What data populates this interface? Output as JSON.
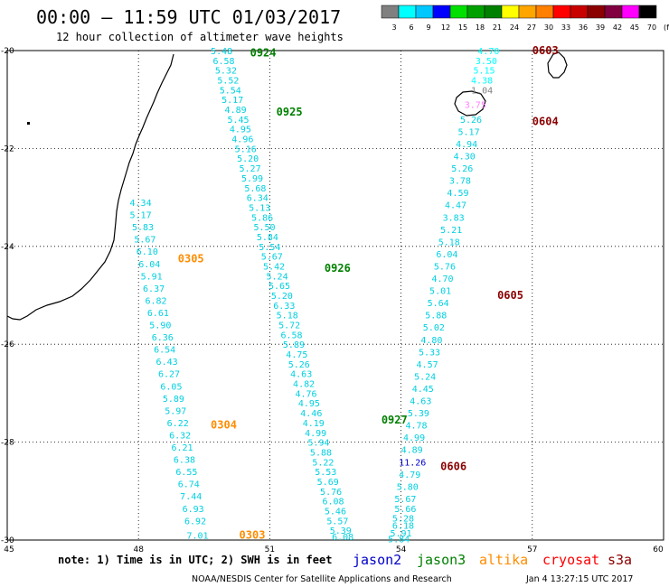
{
  "title": "00:00 – 11:59 UTC 01/03/2017",
  "subtitle": "12 hour collection of altimeter wave heights",
  "legend": {
    "labels": [
      "3",
      "6",
      "9",
      "12",
      "15",
      "18",
      "21",
      "24",
      "27",
      "30",
      "33",
      "36",
      "39",
      "42",
      "45",
      "70",
      "(ft)"
    ],
    "colors": [
      "#808080",
      "#00ffff",
      "#00c8ff",
      "#0000ff",
      "#00e000",
      "#00a000",
      "#008000",
      "#ffff00",
      "#ffa500",
      "#ff7f00",
      "#ff0000",
      "#c80000",
      "#8b0000",
      "#800040",
      "#ff00ff",
      "#000000"
    ]
  },
  "x_ticks": [
    "45",
    "48",
    "51",
    "54",
    "57",
    "60"
  ],
  "y_ticks": [
    "-20",
    "-22",
    "-24",
    "-26",
    "-28",
    "-30"
  ],
  "colors": {
    "jason2": "#0000cc",
    "jason3": "#008000",
    "altika": "#ff8c00",
    "cryosat": "#ff0000",
    "s3a": "#8b0000",
    "swh_main": "#00d0e0",
    "swh_cyan": "#00ffff",
    "swh_gray": "#808080",
    "swh_pink": "#ff80ff"
  },
  "tracks": [
    {
      "id": "jason3-desc",
      "time_labels": [
        {
          "text": "0924",
          "lat": -20.05,
          "lon": 50.55
        },
        {
          "text": "0925",
          "lat": -21.25,
          "lon": 51.15
        },
        {
          "text": "0926",
          "lat": -24.45,
          "lon": 52.25
        },
        {
          "text": "0927",
          "lat": -27.55,
          "lon": 53.55
        }
      ],
      "values": [
        {
          "v": "5.48",
          "lat": -20.0,
          "lon": 49.65
        },
        {
          "v": "6.58",
          "lat": -20.2,
          "lon": 49.7
        },
        {
          "v": "5.32",
          "lat": -20.4,
          "lon": 49.75
        },
        {
          "v": "5.52",
          "lat": -20.6,
          "lon": 49.8
        },
        {
          "v": "5.54",
          "lat": -20.8,
          "lon": 49.85
        },
        {
          "v": "5.17",
          "lat": -21.0,
          "lon": 49.9
        },
        {
          "v": "4.89",
          "lat": -21.2,
          "lon": 49.97
        },
        {
          "v": "5.45",
          "lat": -21.4,
          "lon": 50.03
        },
        {
          "v": "4.95",
          "lat": -21.6,
          "lon": 50.08
        },
        {
          "v": "4.96",
          "lat": -21.8,
          "lon": 50.13
        },
        {
          "v": "5.16",
          "lat": -22.0,
          "lon": 50.2
        },
        {
          "v": "5.20",
          "lat": -22.2,
          "lon": 50.25
        },
        {
          "v": "5.27",
          "lat": -22.4,
          "lon": 50.3
        },
        {
          "v": "5.99",
          "lat": -22.6,
          "lon": 50.35
        },
        {
          "v": "5.68",
          "lat": -22.8,
          "lon": 50.42
        },
        {
          "v": "6.34",
          "lat": -23.0,
          "lon": 50.47
        },
        {
          "v": "5.13",
          "lat": -23.2,
          "lon": 50.52
        },
        {
          "v": "5.86",
          "lat": -23.4,
          "lon": 50.58
        },
        {
          "v": "5.50",
          "lat": -23.6,
          "lon": 50.63
        },
        {
          "v": "5.84",
          "lat": -23.8,
          "lon": 50.7
        },
        {
          "v": "5.54",
          "lat": -24.0,
          "lon": 50.75
        },
        {
          "v": "5.67",
          "lat": -24.2,
          "lon": 50.8
        },
        {
          "v": "5.42",
          "lat": -24.4,
          "lon": 50.85
        },
        {
          "v": "5.24",
          "lat": -24.6,
          "lon": 50.92
        },
        {
          "v": "5.65",
          "lat": -24.8,
          "lon": 50.97
        },
        {
          "v": "5.20",
          "lat": -25.0,
          "lon": 51.03
        },
        {
          "v": "6.33",
          "lat": -25.2,
          "lon": 51.08
        },
        {
          "v": "5.18",
          "lat": -25.4,
          "lon": 51.15
        },
        {
          "v": "5.72",
          "lat": -25.6,
          "lon": 51.2
        },
        {
          "v": "6.58",
          "lat": -25.8,
          "lon": 51.25
        },
        {
          "v": "5.89",
          "lat": -26.0,
          "lon": 51.3
        },
        {
          "v": "4.75",
          "lat": -26.2,
          "lon": 51.37
        },
        {
          "v": "5.26",
          "lat": -26.4,
          "lon": 51.42
        },
        {
          "v": "4.63",
          "lat": -26.6,
          "lon": 51.47
        },
        {
          "v": "4.82",
          "lat": -26.8,
          "lon": 51.53
        },
        {
          "v": "4.76",
          "lat": -27.0,
          "lon": 51.58
        },
        {
          "v": "4.95",
          "lat": -27.2,
          "lon": 51.65
        },
        {
          "v": "4.46",
          "lat": -27.4,
          "lon": 51.7
        },
        {
          "v": "4.19",
          "lat": -27.6,
          "lon": 51.75
        },
        {
          "v": "4.99",
          "lat": -27.8,
          "lon": 51.8
        },
        {
          "v": "5.94",
          "lat": -28.0,
          "lon": 51.87
        },
        {
          "v": "5.88",
          "lat": -28.2,
          "lon": 51.92
        },
        {
          "v": "5.22",
          "lat": -28.4,
          "lon": 51.97
        },
        {
          "v": "5.53",
          "lat": -28.6,
          "lon": 52.03
        },
        {
          "v": "5.69",
          "lat": -28.8,
          "lon": 52.08
        },
        {
          "v": "5.76",
          "lat": -29.0,
          "lon": 52.15
        },
        {
          "v": "6.08",
          "lat": -29.2,
          "lon": 52.2
        },
        {
          "v": "5.46",
          "lat": -29.4,
          "lon": 52.25
        },
        {
          "v": "5.57",
          "lat": -29.6,
          "lon": 52.3
        },
        {
          "v": "5.39",
          "lat": -29.8,
          "lon": 52.37
        },
        {
          "v": "6.08",
          "lat": -29.93,
          "lon": 52.42
        }
      ]
    },
    {
      "id": "altika-desc",
      "time_labels": [
        {
          "text": "0305",
          "lat": -24.25,
          "lon": 48.9
        },
        {
          "text": "0304",
          "lat": -27.65,
          "lon": 49.65
        },
        {
          "text": "0303",
          "lat": -29.9,
          "lon": 50.3
        }
      ],
      "values": [
        {
          "v": "4.34",
          "lat": -23.1,
          "lon": 47.8
        },
        {
          "v": "5.17",
          "lat": -23.35,
          "lon": 47.8
        },
        {
          "v": "5.83",
          "lat": -23.6,
          "lon": 47.85
        },
        {
          "v": "5.67",
          "lat": -23.85,
          "lon": 47.9
        },
        {
          "v": "6.10",
          "lat": -24.1,
          "lon": 47.95
        },
        {
          "v": "6.04",
          "lat": -24.35,
          "lon": 48.0
        },
        {
          "v": "5.91",
          "lat": -24.6,
          "lon": 48.05
        },
        {
          "v": "6.37",
          "lat": -24.85,
          "lon": 48.1
        },
        {
          "v": "6.82",
          "lat": -25.1,
          "lon": 48.15
        },
        {
          "v": "6.61",
          "lat": -25.35,
          "lon": 48.2
        },
        {
          "v": "5.90",
          "lat": -25.6,
          "lon": 48.25
        },
        {
          "v": "6.36",
          "lat": -25.85,
          "lon": 48.3
        },
        {
          "v": "6.54",
          "lat": -26.1,
          "lon": 48.35
        },
        {
          "v": "6.43",
          "lat": -26.35,
          "lon": 48.4
        },
        {
          "v": "6.27",
          "lat": -26.6,
          "lon": 48.45
        },
        {
          "v": "6.05",
          "lat": -26.85,
          "lon": 48.5
        },
        {
          "v": "5.89",
          "lat": -27.1,
          "lon": 48.55
        },
        {
          "v": "5.97",
          "lat": -27.35,
          "lon": 48.6
        },
        {
          "v": "6.22",
          "lat": -27.6,
          "lon": 48.65
        },
        {
          "v": "6.32",
          "lat": -27.85,
          "lon": 48.7
        },
        {
          "v": "6.21",
          "lat": -28.1,
          "lon": 48.75
        },
        {
          "v": "6.38",
          "lat": -28.35,
          "lon": 48.8
        },
        {
          "v": "6.55",
          "lat": -28.6,
          "lon": 48.85
        },
        {
          "v": "6.74",
          "lat": -28.85,
          "lon": 48.9
        },
        {
          "v": "7.44",
          "lat": -29.1,
          "lon": 48.95
        },
        {
          "v": "6.93",
          "lat": -29.35,
          "lon": 49.0
        },
        {
          "v": "6.92",
          "lat": -29.6,
          "lon": 49.05
        },
        {
          "v": "7.01",
          "lat": -29.9,
          "lon": 49.1
        }
      ]
    },
    {
      "id": "s3a-asc",
      "time_labels": [
        {
          "text": "0603",
          "lat": -20.0,
          "lon": 57.0
        },
        {
          "text": "0604",
          "lat": -21.45,
          "lon": 57.0
        },
        {
          "text": "0605",
          "lat": -25.0,
          "lon": 56.2
        },
        {
          "text": "0606",
          "lat": -28.5,
          "lon": 54.9
        }
      ],
      "values": [
        {
          "v": "4.70",
          "lat": -20.0,
          "lon": 55.75,
          "c": "cyan"
        },
        {
          "v": "3.50",
          "lat": -20.2,
          "lon": 55.7,
          "c": "cyan"
        },
        {
          "v": "5.15",
          "lat": -20.4,
          "lon": 55.65,
          "c": "cyan"
        },
        {
          "v": "4.38",
          "lat": -20.6,
          "lon": 55.6,
          "c": "cyan"
        },
        {
          "v": "1.04",
          "lat": -20.8,
          "lon": 55.6,
          "c": "gray"
        },
        {
          "v": "3.75",
          "lat": -21.1,
          "lon": 55.45,
          "c": "pink"
        },
        {
          "v": "5.26",
          "lat": -21.4,
          "lon": 55.35
        },
        {
          "v": "5.17",
          "lat": -21.65,
          "lon": 55.3
        },
        {
          "v": "4.94",
          "lat": -21.9,
          "lon": 55.25
        },
        {
          "v": "4.30",
          "lat": -22.15,
          "lon": 55.2
        },
        {
          "v": "5.26",
          "lat": -22.4,
          "lon": 55.15
        },
        {
          "v": "3.78",
          "lat": -22.65,
          "lon": 55.1
        },
        {
          "v": "4.59",
          "lat": -22.9,
          "lon": 55.05
        },
        {
          "v": "4.47",
          "lat": -23.15,
          "lon": 55.0
        },
        {
          "v": "3.83",
          "lat": -23.4,
          "lon": 54.95
        },
        {
          "v": "5.21",
          "lat": -23.65,
          "lon": 54.9
        },
        {
          "v": "5.18",
          "lat": -23.9,
          "lon": 54.85
        },
        {
          "v": "6.04",
          "lat": -24.15,
          "lon": 54.8
        },
        {
          "v": "5.76",
          "lat": -24.4,
          "lon": 54.75
        },
        {
          "v": "4.70",
          "lat": -24.65,
          "lon": 54.7
        },
        {
          "v": "5.01",
          "lat": -24.9,
          "lon": 54.65
        },
        {
          "v": "5.64",
          "lat": -25.15,
          "lon": 54.6
        },
        {
          "v": "5.88",
          "lat": -25.4,
          "lon": 54.55
        },
        {
          "v": "5.02",
          "lat": -25.65,
          "lon": 54.5
        },
        {
          "v": "4.80",
          "lat": -25.9,
          "lon": 54.45
        },
        {
          "v": "5.33",
          "lat": -26.15,
          "lon": 54.4
        },
        {
          "v": "4.57",
          "lat": -26.4,
          "lon": 54.35
        },
        {
          "v": "5.24",
          "lat": -26.65,
          "lon": 54.3
        },
        {
          "v": "4.45",
          "lat": -26.9,
          "lon": 54.25
        },
        {
          "v": "4.63",
          "lat": -27.15,
          "lon": 54.2
        },
        {
          "v": "5.39",
          "lat": -27.4,
          "lon": 54.15
        },
        {
          "v": "4.78",
          "lat": -27.65,
          "lon": 54.1
        },
        {
          "v": "4.99",
          "lat": -27.9,
          "lon": 54.05
        },
        {
          "v": "4.89",
          "lat": -28.15,
          "lon": 54.0
        },
        {
          "v": "11.26",
          "lat": -28.4,
          "lon": 53.95,
          "c": "blue"
        },
        {
          "v": "4.79",
          "lat": -28.65,
          "lon": 53.95
        },
        {
          "v": "5.80",
          "lat": -28.9,
          "lon": 53.9
        },
        {
          "v": "5.67",
          "lat": -29.15,
          "lon": 53.85
        },
        {
          "v": "5.66",
          "lat": -29.35,
          "lon": 53.85
        },
        {
          "v": "5.28",
          "lat": -29.55,
          "lon": 53.8
        },
        {
          "v": "6.18",
          "lat": -29.7,
          "lon": 53.8
        },
        {
          "v": "5.91",
          "lat": -29.85,
          "lon": 53.75
        },
        {
          "v": "5.84",
          "lat": -29.97,
          "lon": 53.7
        }
      ]
    }
  ],
  "note": "note: 1) Time is in UTC; 2) SWH is in feet",
  "satellites": [
    {
      "name": "jason2",
      "color": "#0000cc"
    },
    {
      "name": "jason3",
      "color": "#008000"
    },
    {
      "name": "altika",
      "color": "#ff8c00"
    },
    {
      "name": "cryosat",
      "color": "#ff0000"
    },
    {
      "name": "s3a",
      "color": "#8b0000"
    }
  ],
  "credit": "NOAA/NESDIS Center for Satellite Applications and Research",
  "timestamp": "Jan  4 13:27:15 UTC 2017"
}
